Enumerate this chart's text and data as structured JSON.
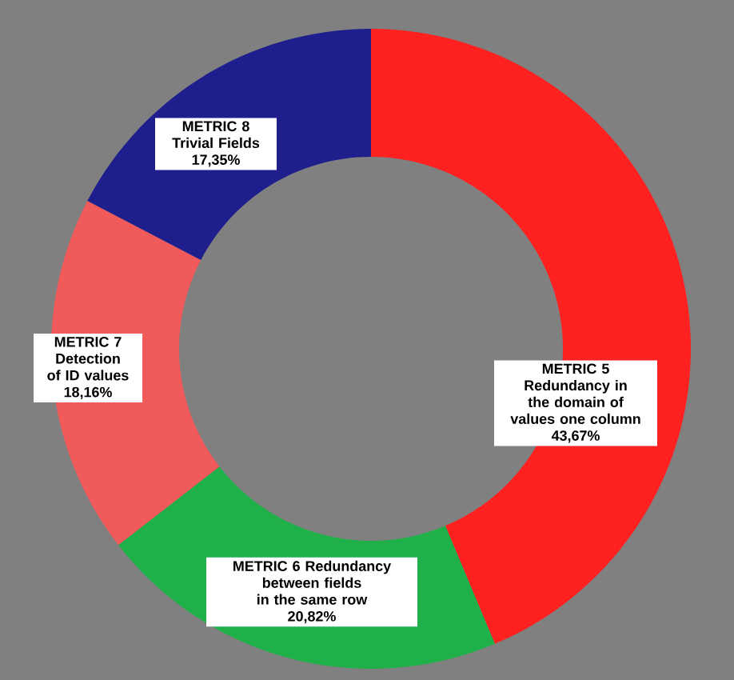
{
  "chart_data": {
    "type": "donut",
    "categories": [
      "METRIC 5 Redundancy in the domain of values one column",
      "METRIC 6 Redundancy between fields in the same row",
      "METRIC 7 Detection of ID values",
      "METRIC 8 Trivial Fields"
    ],
    "values": [
      43.67,
      20.82,
      18.16,
      17.35
    ],
    "value_labels": [
      "43,67%",
      "20,82%",
      "18,16%",
      "17,35%"
    ],
    "colors": [
      "#ff2020",
      "#1fb04a",
      "#f05a5a",
      "#1e1e8c"
    ]
  }
}
